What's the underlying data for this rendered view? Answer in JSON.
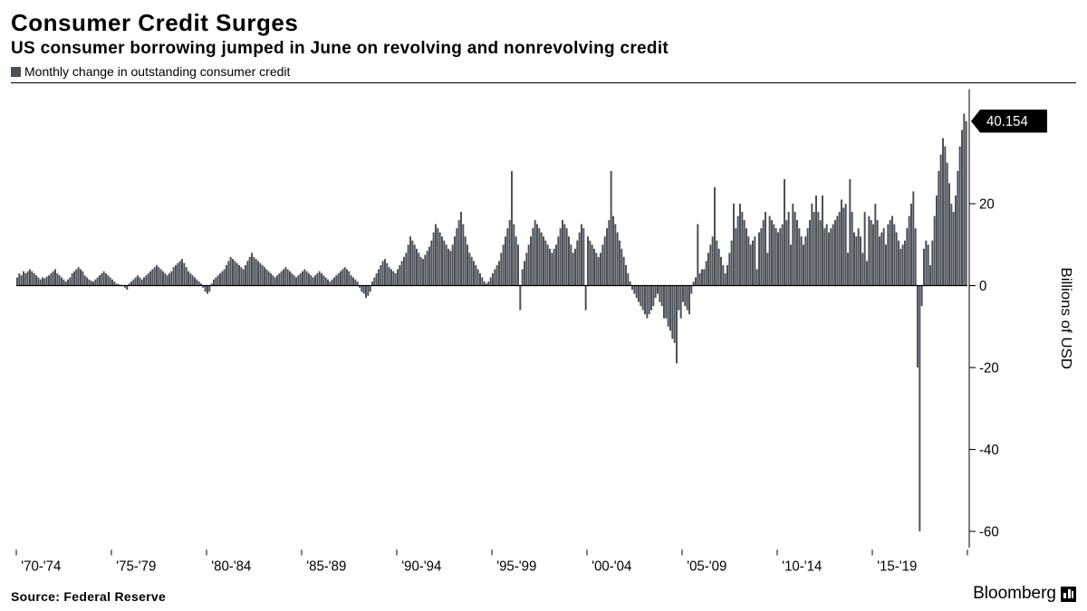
{
  "title": "Consumer Credit Surges",
  "subtitle": "US consumer borrowing jumped in June on revolving and nonrevolving credit",
  "legend_label": "Monthly change in outstanding consumer credit",
  "source": "Source: Federal Reserve",
  "brand": "Bloomberg",
  "callout_value": "40.154",
  "chart": {
    "type": "bar",
    "background_color": "#ffffff",
    "bar_color": "#4a5057",
    "zero_line_color": "#000000",
    "tick_color": "#000000",
    "callout_bg": "#000000",
    "callout_fg": "#ffffff",
    "y_axis_label": "Billions of USD",
    "y_axis_label_fontsize": 16,
    "ylim": [
      -64,
      48
    ],
    "yticks": [
      -60,
      -40,
      -20,
      0,
      20,
      40.154
    ],
    "ytick_labels": [
      "-60",
      "-40",
      "-20",
      "0",
      "20",
      "40.154"
    ],
    "tick_fontsize": 15,
    "x_group_labels": [
      "'70-'74",
      "'75-'79",
      "'80-'84",
      "'85-'89",
      "'90-'94",
      "'95-'99",
      "'00-'04",
      "'05-'09",
      "'10-'14",
      "'15-'19"
    ],
    "x_label_fontsize": 15,
    "values": [
      2.0,
      3.0,
      2.5,
      3.5,
      3.0,
      3.5,
      4.0,
      3.5,
      3.0,
      2.5,
      2.0,
      1.5,
      2.0,
      1.8,
      2.2,
      2.5,
      3.0,
      3.5,
      4.0,
      3.0,
      2.5,
      2.0,
      1.5,
      1.0,
      1.5,
      2.0,
      3.0,
      3.5,
      4.0,
      4.5,
      4.0,
      3.5,
      2.5,
      2.0,
      1.5,
      1.2,
      1.0,
      1.5,
      2.0,
      2.5,
      3.0,
      3.5,
      3.0,
      2.5,
      2.0,
      1.5,
      1.0,
      0.5,
      0.3,
      0.2,
      0.1,
      -0.5,
      -1.0,
      0.5,
      1.0,
      1.5,
      2.0,
      2.5,
      2.0,
      1.5,
      2.0,
      2.5,
      3.0,
      3.5,
      4.0,
      4.5,
      5.0,
      4.5,
      4.0,
      3.5,
      3.0,
      2.5,
      3.0,
      3.5,
      4.5,
      5.0,
      5.5,
      6.0,
      6.5,
      5.5,
      4.5,
      3.5,
      3.0,
      2.5,
      2.0,
      1.5,
      1.0,
      0.5,
      -0.5,
      -1.5,
      -2.0,
      -1.5,
      0.5,
      1.5,
      2.0,
      2.5,
      3.0,
      3.5,
      4.0,
      5.0,
      6.0,
      7.0,
      6.5,
      6.0,
      5.5,
      5.0,
      4.5,
      4.0,
      5.0,
      6.0,
      7.0,
      8.0,
      7.0,
      6.5,
      6.0,
      5.5,
      5.0,
      4.5,
      4.0,
      3.5,
      3.0,
      2.5,
      2.0,
      2.5,
      3.0,
      3.5,
      4.0,
      4.5,
      4.0,
      3.5,
      3.0,
      2.5,
      2.0,
      2.5,
      3.0,
      3.5,
      4.0,
      3.5,
      3.0,
      2.5,
      2.0,
      2.5,
      3.0,
      3.5,
      3.0,
      2.5,
      2.0,
      1.5,
      1.0,
      1.5,
      2.0,
      2.5,
      3.0,
      3.5,
      4.0,
      4.5,
      4.0,
      3.5,
      2.5,
      2.0,
      1.5,
      1.0,
      -0.5,
      -1.5,
      -2.0,
      -3.0,
      -2.5,
      -1.5,
      1.0,
      2.0,
      3.0,
      4.0,
      5.0,
      6.0,
      6.5,
      5.5,
      4.5,
      4.0,
      3.5,
      3.0,
      4.0,
      5.0,
      6.0,
      7.0,
      8.0,
      10.0,
      12.0,
      11.0,
      10.0,
      9.0,
      8.0,
      7.0,
      6.5,
      7.5,
      8.5,
      9.5,
      11.0,
      13.0,
      15.0,
      14.0,
      13.0,
      12.0,
      11.0,
      10.0,
      9.0,
      8.5,
      10.0,
      12.0,
      14.0,
      16.0,
      18.0,
      15.0,
      12.0,
      10.0,
      8.0,
      7.0,
      6.0,
      5.0,
      4.0,
      3.0,
      2.0,
      1.0,
      0.5,
      1.0,
      2.0,
      3.0,
      4.0,
      5.0,
      6.0,
      8.0,
      10.0,
      12.0,
      14.0,
      16.0,
      28.0,
      15.0,
      12.0,
      10.0,
      -6.0,
      4.0,
      6.0,
      8.0,
      10.0,
      12.0,
      14.0,
      16.0,
      15.0,
      14.0,
      13.0,
      12.0,
      11.0,
      10.0,
      9.0,
      8.0,
      9.0,
      10.0,
      12.0,
      14.0,
      16.0,
      15.0,
      14.0,
      12.0,
      10.0,
      8.0,
      9.0,
      11.0,
      13.0,
      15.0,
      14.0,
      -6.0,
      12.0,
      11.0,
      10.0,
      9.0,
      8.0,
      7.0,
      8.0,
      10.0,
      12.0,
      14.0,
      16.0,
      28.0,
      17.0,
      15.0,
      13.0,
      11.0,
      9.0,
      7.0,
      5.0,
      3.0,
      1.0,
      -1.0,
      -2.0,
      -3.0,
      -4.0,
      -5.0,
      -6.0,
      -7.0,
      -8.0,
      -7.0,
      -6.0,
      -5.0,
      -3.0,
      -2.0,
      -4.0,
      -5.0,
      -8.0,
      -8.0,
      -10.0,
      -11.0,
      -13.0,
      -14.0,
      -19.0,
      -6.0,
      -8.0,
      -4.0,
      -5.0,
      -6.0,
      -7.0,
      -2.0,
      1.0,
      2.0,
      15.0,
      3.0,
      4.0,
      4.0,
      6.0,
      8.0,
      10.0,
      12.0,
      24.0,
      11.0,
      9.0,
      7.0,
      5.0,
      3.0,
      5.0,
      8.0,
      11.0,
      20.0,
      14.0,
      17.0,
      20.0,
      18.0,
      16.0,
      14.0,
      12.0,
      10.0,
      11.0,
      12.0,
      4.0,
      13.0,
      14.0,
      16.0,
      18.0,
      8.0,
      17.0,
      16.0,
      15.0,
      14.0,
      13.0,
      14.0,
      15.0,
      26.0,
      16.0,
      18.0,
      10.0,
      20.0,
      18.0,
      16.0,
      14.0,
      12.0,
      10.0,
      12.0,
      14.0,
      16.0,
      20.0,
      18.0,
      22.0,
      18.0,
      16.0,
      22.0,
      14.0,
      15.0,
      13.0,
      14.0,
      15.0,
      16.0,
      17.0,
      18.0,
      21.0,
      19.0,
      20.0,
      8.0,
      26.0,
      18.0,
      13.0,
      12.0,
      14.0,
      12.0,
      8.0,
      18.0,
      6.0,
      17.0,
      16.0,
      15.0,
      20.0,
      16.0,
      12.0,
      13.0,
      14.0,
      10.0,
      15.0,
      16.0,
      17.0,
      15.0,
      13.0,
      11.0,
      9.0,
      10.0,
      11.0,
      14.0,
      17.0,
      20.0,
      23.0,
      14.0,
      -20.0,
      -60.0,
      -5.0,
      9.0,
      11.0,
      10.0,
      5.0,
      11.0,
      17.0,
      22.0,
      28.0,
      32.0,
      36.0,
      34.0,
      30.0,
      25.0,
      20.0,
      18.0,
      22.0,
      28.0,
      34.0,
      38.0,
      42.0,
      40.154
    ]
  }
}
